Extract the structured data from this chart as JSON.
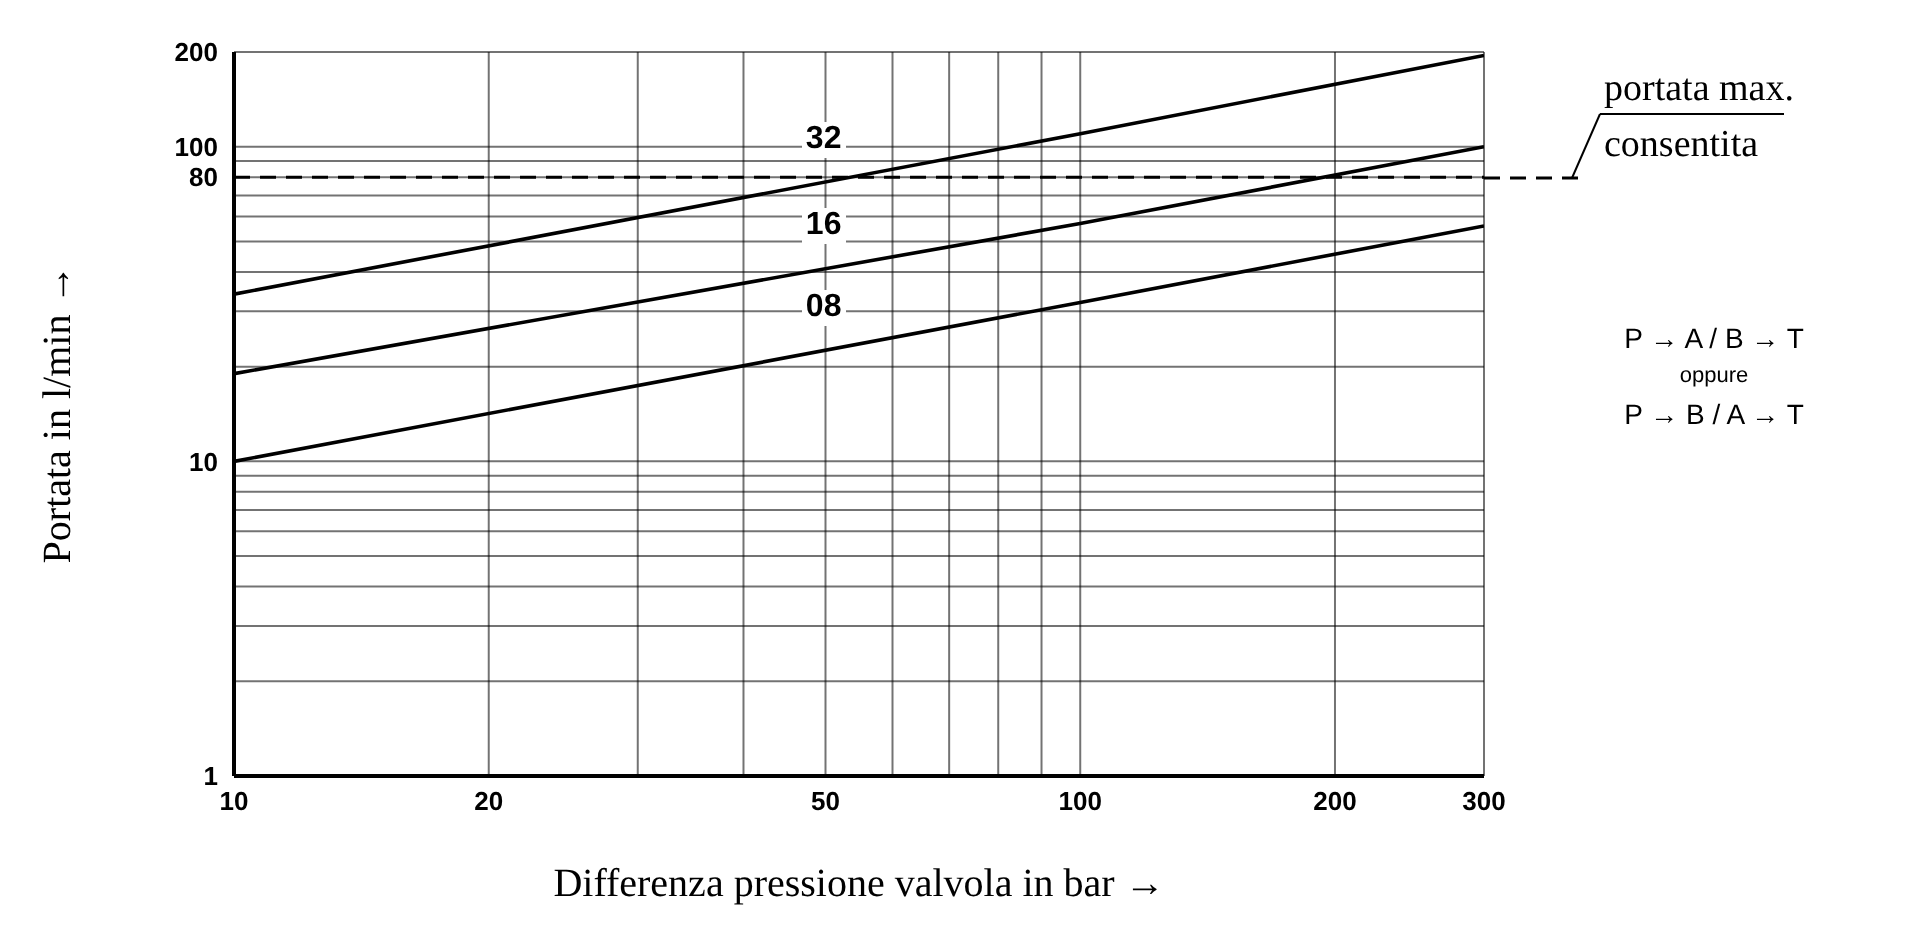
{
  "chart_data": {
    "type": "line",
    "xlabel": "Differenza pressione valvola in bar →",
    "ylabel": "Portata in l/min →",
    "log": "xy",
    "grid": true,
    "marker": "none",
    "line_style": "solid",
    "xlim": [
      10,
      300
    ],
    "xticks": [
      10,
      20,
      {
        "value": 30,
        "label": null
      },
      {
        "value": 40,
        "label": null
      },
      50,
      {
        "value": 60,
        "label": null
      },
      {
        "value": 70,
        "label": null
      },
      {
        "value": 80,
        "label": null
      },
      {
        "value": 90,
        "label": null
      },
      100,
      200,
      300
    ],
    "ylim": [
      1,
      200
    ],
    "yticks": [
      1,
      {
        "value": 2,
        "label": null
      },
      {
        "value": 3,
        "label": null
      },
      {
        "value": 4,
        "label": null
      },
      {
        "value": 5,
        "label": null
      },
      {
        "value": 6,
        "label": null
      },
      {
        "value": 7,
        "label": null
      },
      {
        "value": 8,
        "label": null
      },
      {
        "value": 9,
        "label": null
      },
      10,
      {
        "value": 20,
        "label": null
      },
      {
        "value": 30,
        "label": null
      },
      {
        "value": 40,
        "label": null
      },
      {
        "value": 50,
        "label": null
      },
      {
        "value": 60,
        "label": null
      },
      {
        "value": 70,
        "label": null
      },
      80,
      {
        "value": 90,
        "label": null
      },
      100,
      200
    ],
    "x": [
      10,
      100,
      300
    ],
    "series": [
      {
        "name": "32",
        "color": "#000000",
        "values": [
          34,
          110,
          195
        ]
      },
      {
        "name": "16",
        "color": "#000000",
        "values": [
          19,
          57,
          100
        ]
      },
      {
        "name": "08",
        "color": "#000000",
        "values": [
          10,
          32,
          56
        ]
      }
    ],
    "ref_lines": [
      {
        "axis": "y",
        "value": 80,
        "label": "portata max. consentita",
        "line_style": "dashed",
        "color": "#000000"
      }
    ],
    "annotations": [
      "P → A / B → T",
      "oppure",
      "P → B / A → T"
    ]
  }
}
